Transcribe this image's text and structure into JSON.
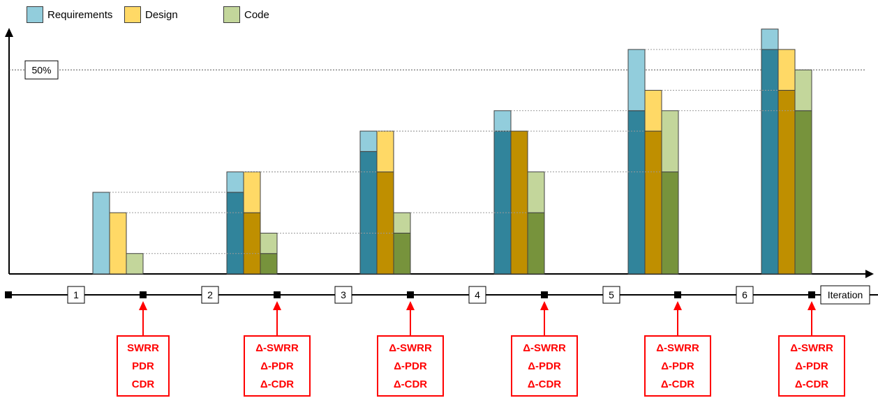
{
  "legend": {
    "items": [
      {
        "label": "Requirements",
        "color": "#92cddc"
      },
      {
        "label": "Design",
        "color": "#ffd966"
      },
      {
        "label": "Code",
        "color": "#c3d69b"
      }
    ]
  },
  "chart_data": {
    "type": "bar",
    "categories": [
      "1",
      "2",
      "3",
      "4",
      "5",
      "6"
    ],
    "reference_line": {
      "label": "50%",
      "value": 50
    },
    "ylim": [
      0,
      55
    ],
    "series": [
      {
        "name": "Requirements",
        "completed": [
          0,
          20,
          30,
          35,
          40,
          55
        ],
        "added": [
          20,
          5,
          5,
          5,
          15,
          5
        ],
        "color_completed": "#31849b",
        "color_added": "#92cddc"
      },
      {
        "name": "Design",
        "completed": [
          0,
          15,
          25,
          35,
          35,
          45
        ],
        "added": [
          15,
          10,
          10,
          0,
          10,
          10
        ],
        "color_completed": "#bf8f00",
        "color_added": "#ffd966"
      },
      {
        "name": "Code",
        "completed": [
          0,
          5,
          10,
          15,
          25,
          40
        ],
        "added": [
          5,
          5,
          5,
          10,
          15,
          10
        ],
        "color_completed": "#77933c",
        "color_added": "#c3d69b"
      }
    ]
  },
  "timeline": {
    "axis_label": "Iteration",
    "iterations": [
      "1",
      "2",
      "3",
      "4",
      "5",
      "6"
    ]
  },
  "reviews": [
    {
      "lines": [
        "SWRR",
        "PDR",
        "CDR"
      ]
    },
    {
      "lines": [
        "Δ-SWRR",
        "Δ-PDR",
        "Δ-CDR"
      ]
    },
    {
      "lines": [
        "Δ-SWRR",
        "Δ-PDR",
        "Δ-CDR"
      ]
    },
    {
      "lines": [
        "Δ-SWRR",
        "Δ-PDR",
        "Δ-CDR"
      ]
    },
    {
      "lines": [
        "Δ-SWRR",
        "Δ-PDR",
        "Δ-CDR"
      ]
    },
    {
      "lines": [
        "Δ-SWRR",
        "Δ-PDR",
        "Δ-CDR"
      ]
    }
  ]
}
